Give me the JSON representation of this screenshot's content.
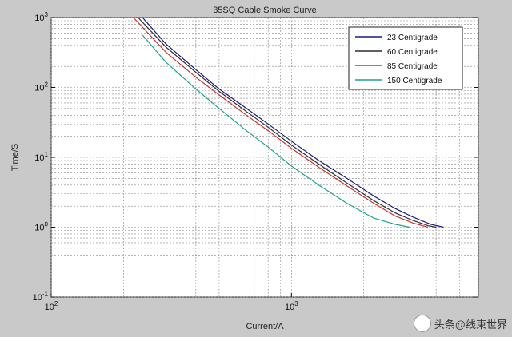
{
  "chart_data": {
    "type": "line",
    "title": "35SQ Cable Smoke Curve",
    "xlabel": "Current/A",
    "ylabel": "Time/S",
    "xscale": "log",
    "yscale": "log",
    "xlim": [
      100,
      6000
    ],
    "ylim": [
      0.1,
      1000
    ],
    "xticks": [
      100,
      1000
    ],
    "xtick_labels": [
      "10^2",
      "10^3"
    ],
    "yticks": [
      0.1,
      1,
      10,
      100,
      1000
    ],
    "ytick_labels": [
      "10^-1",
      "10^0",
      "10^1",
      "10^2",
      "10^3"
    ],
    "grid": true,
    "legend_position": "top-right",
    "series": [
      {
        "name": "23 Centigrade",
        "color": "#1a1a80",
        "x": [
          240,
          300,
          400,
          500,
          650,
          800,
          1000,
          1300,
          1700,
          2200,
          2700,
          3200,
          3800,
          4300
        ],
        "y": [
          1000,
          420,
          180,
          95,
          50,
          30,
          17,
          9,
          5,
          2.8,
          1.85,
          1.4,
          1.1,
          1.0
        ]
      },
      {
        "name": "60 Centigrade",
        "color": "#2d2d2d",
        "x": [
          230,
          300,
          400,
          500,
          650,
          800,
          1000,
          1300,
          1700,
          2200,
          2700,
          3200,
          3700,
          4000
        ],
        "y": [
          1000,
          380,
          165,
          88,
          45,
          27,
          15,
          8,
          4.3,
          2.4,
          1.6,
          1.25,
          1.05,
          1.0
        ]
      },
      {
        "name": "85 Centigrade",
        "color": "#c83232",
        "x": [
          220,
          300,
          400,
          500,
          650,
          800,
          1000,
          1300,
          1700,
          2200,
          2700,
          3200,
          3700
        ],
        "y": [
          1000,
          320,
          140,
          78,
          40,
          24,
          13.5,
          7.2,
          3.9,
          2.2,
          1.45,
          1.15,
          1.0
        ]
      },
      {
        "name": "150 Centigrade",
        "color": "#20a090",
        "x": [
          240,
          300,
          400,
          500,
          650,
          800,
          1000,
          1300,
          1700,
          2200,
          2700,
          3100
        ],
        "y": [
          560,
          230,
          95,
          50,
          24,
          14,
          7.5,
          4,
          2.2,
          1.35,
          1.1,
          1.0
        ]
      }
    ]
  },
  "watermark": {
    "text": "头条@线束世界"
  }
}
